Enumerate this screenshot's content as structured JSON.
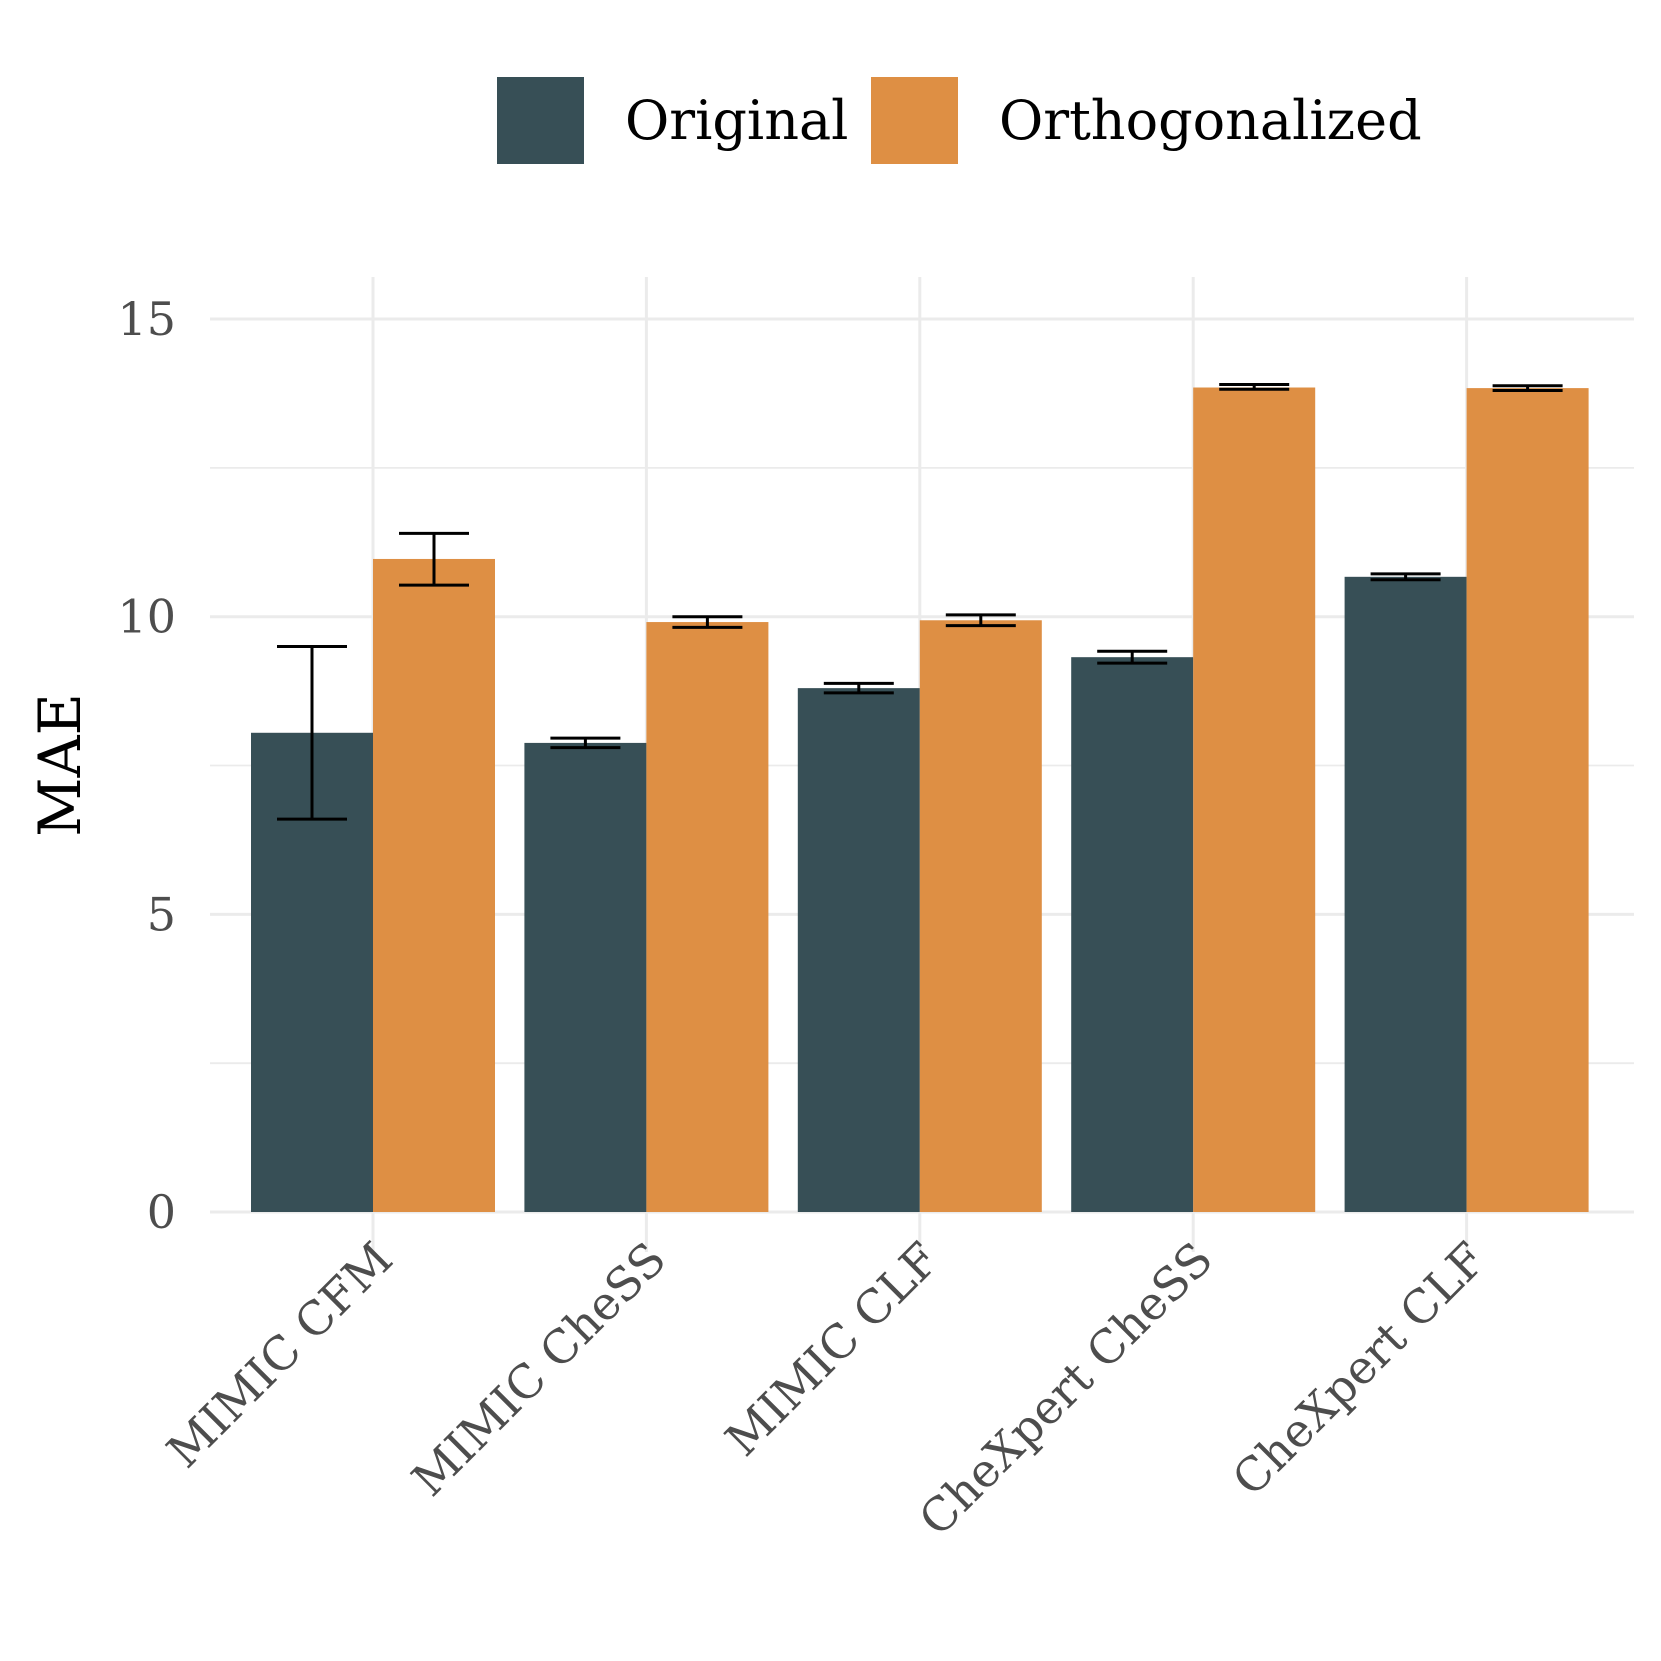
{
  "chart_data": {
    "type": "bar",
    "title": "",
    "xlabel": "",
    "ylabel": "MAE",
    "ylim": [
      0,
      15.7
    ],
    "yticks": [
      0,
      5,
      10,
      15
    ],
    "grid": true,
    "legend_position": "top",
    "categories": [
      "MIMIC CFM",
      "MIMIC CheSS",
      "MIMIC CLF",
      "CheXpert CheSS",
      "CheXpert CLF"
    ],
    "series": [
      {
        "name": "Original",
        "color": "#374f56",
        "values": [
          8.05,
          7.88,
          8.8,
          9.32,
          10.67
        ],
        "error_low": [
          6.6,
          7.8,
          8.72,
          9.22,
          10.62
        ],
        "error_high": [
          9.5,
          7.96,
          8.88,
          9.42,
          10.72
        ]
      },
      {
        "name": "Orthogonalized",
        "color": "#de8f44",
        "values": [
          10.97,
          9.91,
          9.94,
          13.85,
          13.84
        ],
        "error_low": [
          10.53,
          9.82,
          9.85,
          13.82,
          13.8
        ],
        "error_high": [
          11.4,
          10.0,
          10.03,
          13.9,
          13.88
        ]
      }
    ]
  }
}
